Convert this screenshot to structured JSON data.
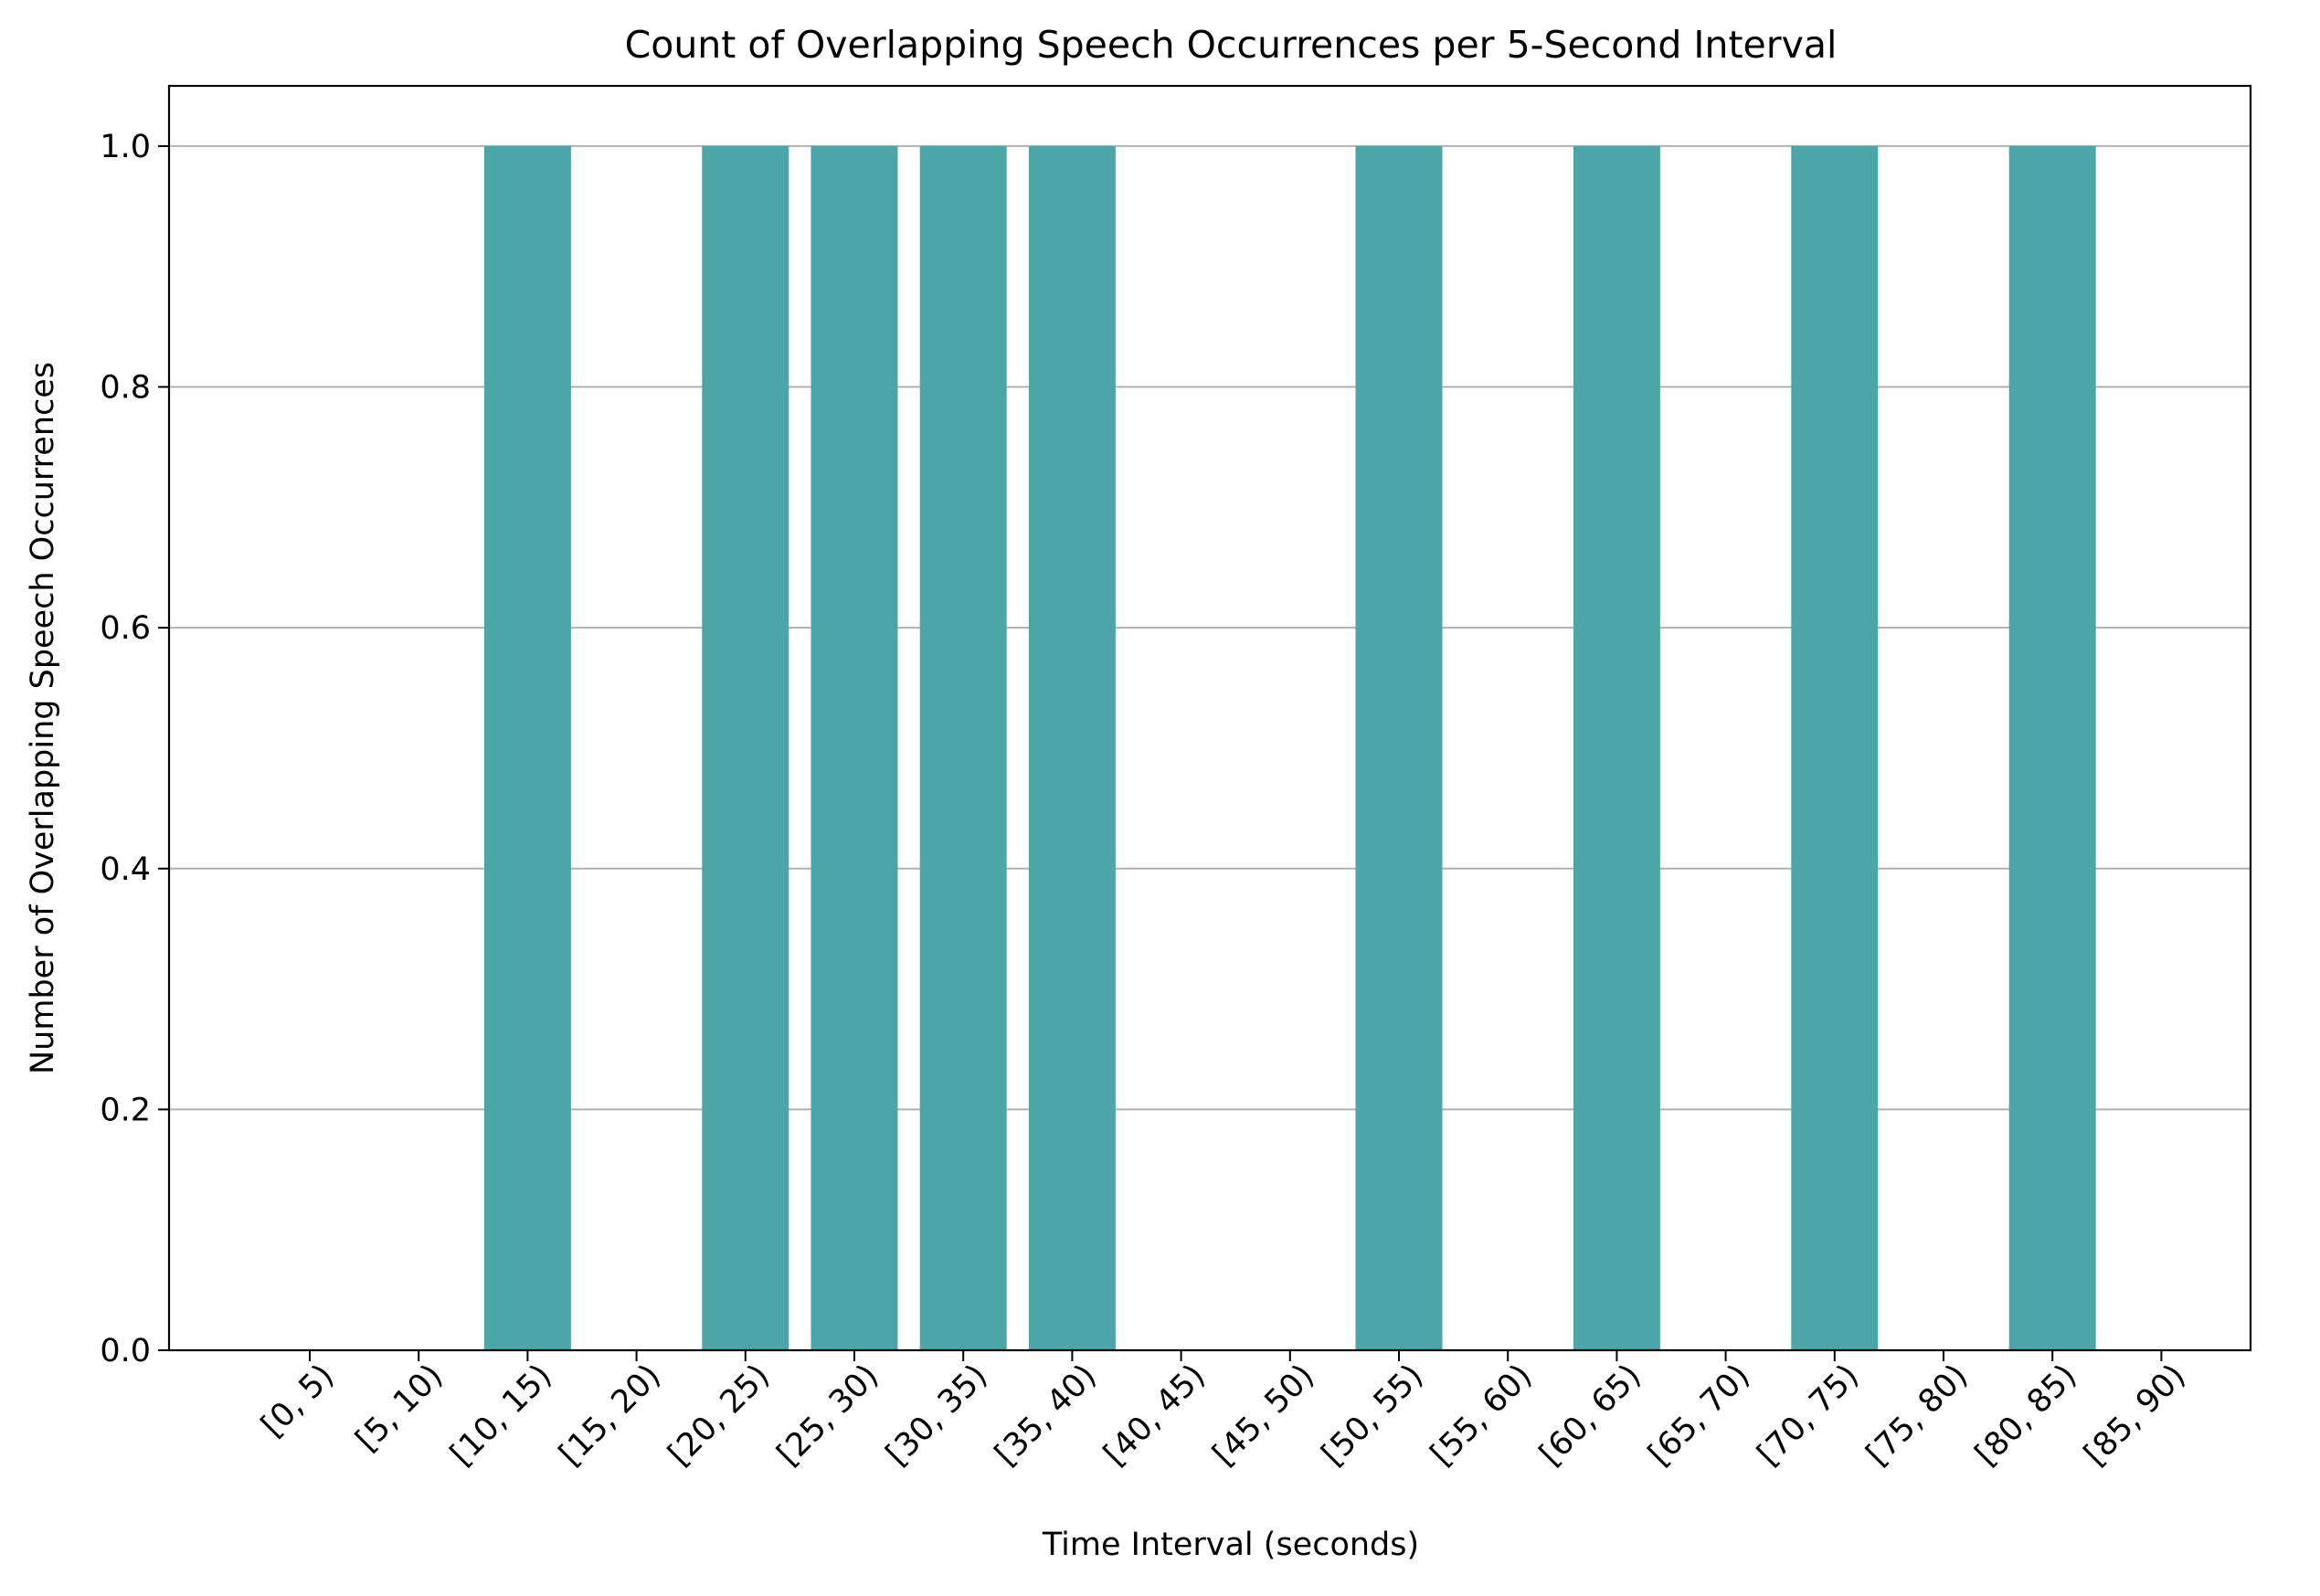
{
  "chart_data": {
    "type": "bar",
    "title": "Count of Overlapping Speech Occurrences per 5-Second Interval",
    "xlabel": "Time Interval (seconds)",
    "ylabel": "Number of Overlapping Speech Occurrences",
    "categories": [
      "[0, 5)",
      "[5, 10)",
      "[10, 15)",
      "[15, 20)",
      "[20, 25)",
      "[25, 30)",
      "[30, 35)",
      "[35, 40)",
      "[40, 45)",
      "[45, 50)",
      "[50, 55)",
      "[55, 60)",
      "[60, 65)",
      "[65, 70)",
      "[70, 75)",
      "[75, 80)",
      "[80, 85)",
      "[85, 90)"
    ],
    "values": [
      0,
      0,
      1,
      0,
      1,
      1,
      1,
      1,
      0,
      0,
      1,
      0,
      1,
      0,
      1,
      0,
      1,
      0
    ],
    "ylim": [
      0,
      1.05
    ],
    "yticks": [
      "0.0",
      "0.2",
      "0.4",
      "0.6",
      "0.8",
      "1.0"
    ],
    "grid": "horizontal",
    "bar_color": "#4ca5a7",
    "legend": "none"
  }
}
